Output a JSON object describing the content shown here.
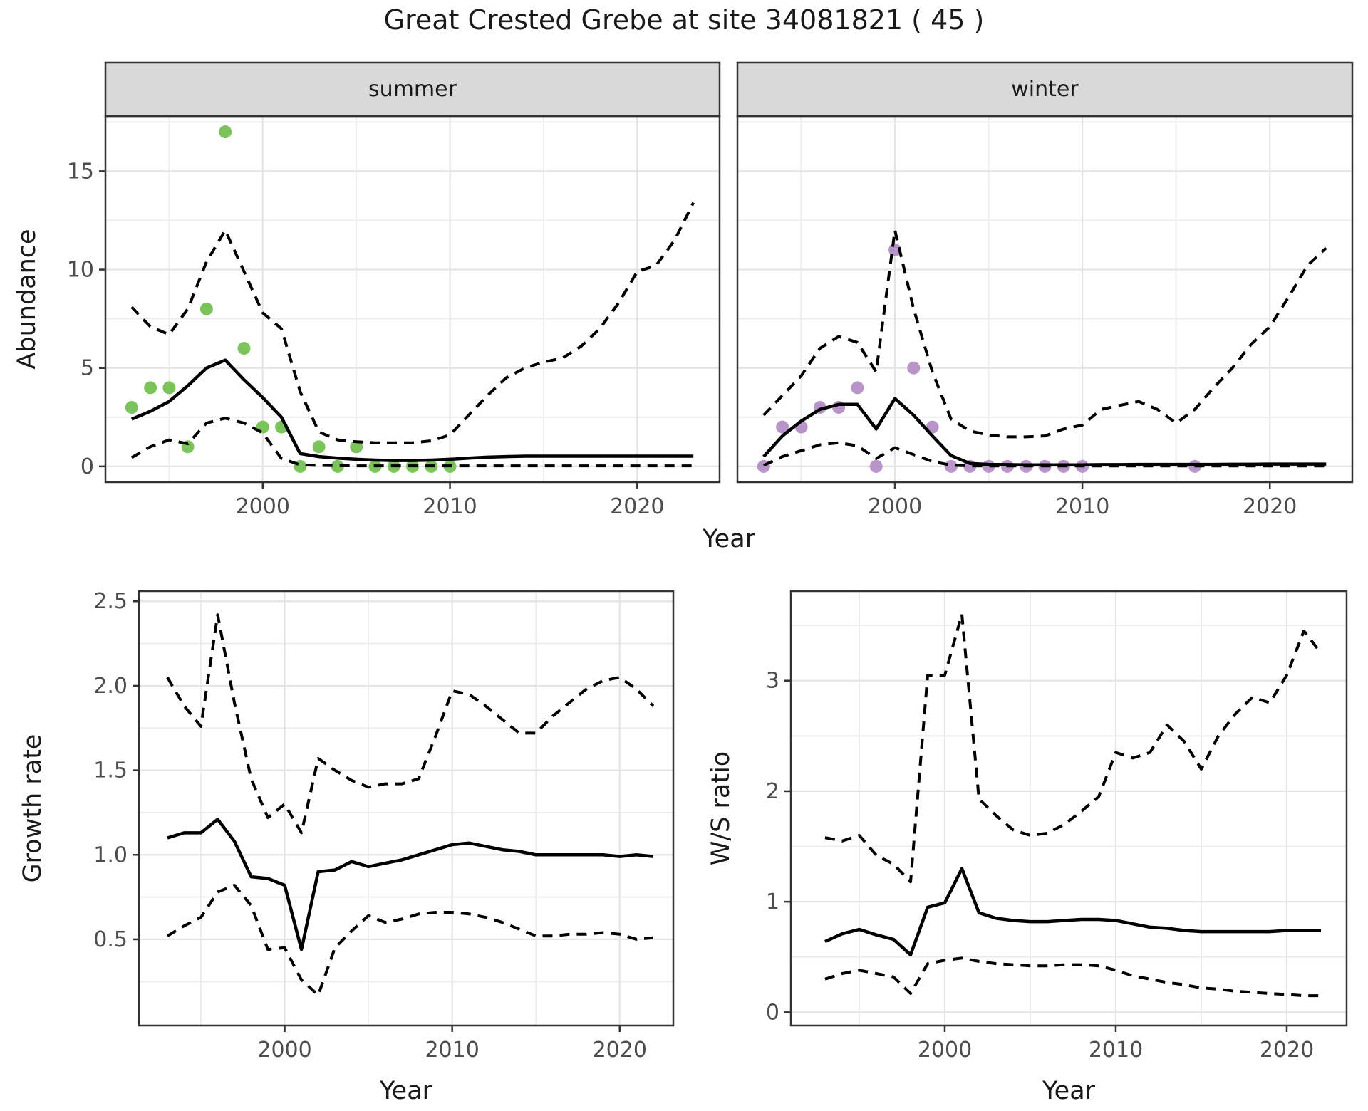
{
  "title": "Great Crested Grebe at site 34081821 ( 45 )",
  "colors": {
    "summer_points": "#7cc35c",
    "winter_points": "#b894c9",
    "line": "#000000",
    "panel_border": "#333333",
    "strip_bg": "#d9d9d9",
    "grid_major": "#e4e4e4",
    "grid_minor": "#ececec",
    "tick_text": "#4d4d4d",
    "title_text": "#1a1a1a"
  },
  "chart_data": [
    {
      "id": "abundance-summer",
      "type": "scatter+line",
      "facet": "summer",
      "xlabel": "Year",
      "ylabel": "Abundance",
      "xlim": [
        1991.6,
        2024.4
      ],
      "ylim": [
        -0.8,
        17.8
      ],
      "x_ticks": [
        2000,
        2010,
        2020
      ],
      "x_tick_labels": [
        "2000",
        "2010",
        "2020"
      ],
      "x_minor": [
        1995,
        2005,
        2015
      ],
      "y_ticks": [
        0,
        5,
        10,
        15
      ],
      "y_tick_labels": [
        "0",
        "5",
        "10",
        "15"
      ],
      "y_minor": [
        2.5,
        7.5,
        12.5,
        17.5
      ],
      "grid": "on",
      "legend": "none",
      "points": {
        "color": "#7cc35c",
        "years": [
          1993,
          1994,
          1995,
          1996,
          1997,
          1998,
          1999,
          2000,
          2001,
          2002,
          2003,
          2004,
          2005,
          2006,
          2007,
          2008,
          2009,
          2010
        ],
        "values": [
          3,
          4,
          4,
          1,
          8,
          17,
          6,
          2,
          2,
          0,
          1,
          0,
          1,
          0,
          0,
          0,
          0,
          0
        ]
      },
      "series": [
        {
          "name": "median-fit",
          "style": "solid",
          "year_start": 1993,
          "values": [
            2.4,
            2.8,
            3.3,
            4.1,
            5.0,
            5.4,
            4.4,
            3.5,
            2.5,
            0.65,
            0.5,
            0.42,
            0.36,
            0.32,
            0.3,
            0.3,
            0.32,
            0.36,
            0.42,
            0.47,
            0.5,
            0.52,
            0.52,
            0.52,
            0.52,
            0.52,
            0.52,
            0.52,
            0.52,
            0.52,
            0.52
          ]
        },
        {
          "name": "upper-ci",
          "style": "dashed",
          "year_start": 1993,
          "values": [
            8.1,
            7.1,
            6.7,
            8.0,
            10.4,
            12.0,
            9.9,
            7.8,
            7.0,
            3.8,
            1.75,
            1.35,
            1.25,
            1.2,
            1.2,
            1.2,
            1.3,
            1.6,
            2.6,
            3.6,
            4.5,
            5.0,
            5.3,
            5.5,
            6.1,
            7.0,
            8.3,
            9.9,
            10.2,
            11.5,
            13.4
          ]
        },
        {
          "name": "lower-ci",
          "style": "dashed",
          "year_start": 1993,
          "values": [
            0.45,
            1.0,
            1.35,
            1.15,
            2.2,
            2.45,
            2.2,
            1.7,
            0.4,
            0.08,
            0.05,
            0.04,
            0.03,
            0.03,
            0.03,
            0.03,
            0.03,
            0.03,
            0.03,
            0.03,
            0.03,
            0.03,
            0.03,
            0.03,
            0.03,
            0.03,
            0.03,
            0.03,
            0.03,
            0.03,
            0.03
          ]
        }
      ]
    },
    {
      "id": "abundance-winter",
      "type": "scatter+line",
      "facet": "winter",
      "xlabel": "Year",
      "ylabel": "Abundance",
      "xlim": [
        1991.6,
        2024.4
      ],
      "ylim": [
        -0.8,
        17.8
      ],
      "x_ticks": [
        2000,
        2010,
        2020
      ],
      "x_tick_labels": [
        "2000",
        "2010",
        "2020"
      ],
      "x_minor": [
        1995,
        2005,
        2015
      ],
      "y_ticks": [],
      "y_tick_labels": [],
      "y_minor": [
        2.5,
        7.5,
        12.5,
        17.5
      ],
      "grid": "on",
      "legend": "none",
      "points": {
        "color": "#b894c9",
        "years": [
          1993,
          1994,
          1995,
          1996,
          1997,
          1998,
          1999,
          2000,
          2001,
          2002,
          2003,
          2004,
          2005,
          2006,
          2007,
          2008,
          2009,
          2010,
          2016
        ],
        "values": [
          0,
          2,
          2,
          3,
          3,
          4,
          0,
          11,
          5,
          2,
          0,
          0,
          0,
          0,
          0,
          0,
          0,
          0,
          0
        ]
      },
      "series": [
        {
          "name": "median-fit",
          "style": "solid",
          "year_start": 1993,
          "values": [
            0.5,
            1.55,
            2.3,
            2.9,
            3.15,
            3.15,
            1.9,
            3.45,
            2.6,
            1.55,
            0.55,
            0.15,
            0.1,
            0.09,
            0.08,
            0.08,
            0.08,
            0.08,
            0.09,
            0.09,
            0.1,
            0.1,
            0.1,
            0.1,
            0.1,
            0.11,
            0.11,
            0.12,
            0.12,
            0.12,
            0.12
          ]
        },
        {
          "name": "upper-ci",
          "style": "dashed",
          "year_start": 1993,
          "values": [
            2.6,
            3.6,
            4.6,
            6.0,
            6.6,
            6.3,
            4.8,
            12.0,
            8.0,
            4.8,
            2.4,
            1.8,
            1.6,
            1.5,
            1.5,
            1.55,
            1.9,
            2.1,
            2.9,
            3.1,
            3.3,
            2.9,
            2.2,
            2.9,
            4.0,
            5.0,
            6.2,
            7.1,
            8.6,
            10.2,
            11.1
          ]
        },
        {
          "name": "lower-ci",
          "style": "dashed",
          "year_start": 1993,
          "values": [
            0.05,
            0.5,
            0.8,
            1.1,
            1.2,
            1.05,
            0.4,
            0.95,
            0.6,
            0.25,
            0.06,
            0.03,
            0.02,
            0.02,
            0.02,
            0.02,
            0.02,
            0.02,
            0.02,
            0.02,
            0.02,
            0.02,
            0.02,
            0.02,
            0.02,
            0.02,
            0.02,
            0.02,
            0.02,
            0.02,
            0.02
          ]
        }
      ]
    },
    {
      "id": "growth-rate",
      "type": "line",
      "facet": null,
      "xlabel": "Year",
      "ylabel": "Growth rate",
      "xlim": [
        1991.3,
        2023.2
      ],
      "ylim": [
        -0.01,
        2.56
      ],
      "x_ticks": [
        2000,
        2010,
        2020
      ],
      "x_tick_labels": [
        "2000",
        "2010",
        "2020"
      ],
      "x_minor": [
        1995,
        2005,
        2015
      ],
      "y_ticks": [
        0.5,
        1.0,
        1.5,
        2.0,
        2.5
      ],
      "y_tick_labels": [
        "0.5",
        "1.0",
        "1.5",
        "2.0",
        "2.5"
      ],
      "y_minor": [
        0.25,
        0.75,
        1.25,
        1.75,
        2.25
      ],
      "grid": "on",
      "legend": "none",
      "points": null,
      "series": [
        {
          "name": "median-fit",
          "style": "solid",
          "year_start": 1993,
          "values": [
            1.1,
            1.13,
            1.13,
            1.21,
            1.08,
            0.87,
            0.86,
            0.82,
            0.44,
            0.9,
            0.91,
            0.96,
            0.93,
            0.95,
            0.97,
            1.0,
            1.03,
            1.06,
            1.07,
            1.05,
            1.03,
            1.02,
            1.0,
            1.0,
            1.0,
            1.0,
            1.0,
            0.99,
            1.0,
            0.99
          ]
        },
        {
          "name": "upper-ci",
          "style": "dashed",
          "year_start": 1993,
          "values": [
            2.05,
            1.88,
            1.76,
            2.42,
            1.9,
            1.45,
            1.22,
            1.3,
            1.13,
            1.57,
            1.5,
            1.44,
            1.4,
            1.42,
            1.42,
            1.45,
            1.7,
            1.97,
            1.95,
            1.88,
            1.8,
            1.72,
            1.72,
            1.82,
            1.9,
            1.98,
            2.03,
            2.05,
            1.98,
            1.88
          ]
        },
        {
          "name": "lower-ci",
          "style": "dashed",
          "year_start": 1993,
          "values": [
            0.52,
            0.58,
            0.63,
            0.78,
            0.82,
            0.7,
            0.44,
            0.45,
            0.26,
            0.17,
            0.45,
            0.55,
            0.64,
            0.6,
            0.62,
            0.65,
            0.66,
            0.66,
            0.65,
            0.63,
            0.6,
            0.56,
            0.52,
            0.52,
            0.53,
            0.53,
            0.54,
            0.53,
            0.5,
            0.51
          ]
        }
      ]
    },
    {
      "id": "ws-ratio",
      "type": "line",
      "facet": null,
      "xlabel": "Year",
      "ylabel": "W/S ratio",
      "xlim": [
        1991.0,
        2023.5
      ],
      "ylim": [
        -0.12,
        3.81
      ],
      "x_ticks": [
        2000,
        2010,
        2020
      ],
      "x_tick_labels": [
        "2000",
        "2010",
        "2020"
      ],
      "x_minor": [
        1995,
        2005,
        2015
      ],
      "y_ticks": [
        0,
        1,
        2,
        3
      ],
      "y_tick_labels": [
        "0",
        "1",
        "2",
        "3"
      ],
      "y_minor": [
        0.5,
        1.5,
        2.5,
        3.5
      ],
      "grid": "on",
      "legend": "none",
      "points": null,
      "series": [
        {
          "name": "median-fit",
          "style": "solid",
          "year_start": 1993,
          "values": [
            0.64,
            0.71,
            0.75,
            0.7,
            0.66,
            0.52,
            0.95,
            0.99,
            1.3,
            0.9,
            0.85,
            0.83,
            0.82,
            0.82,
            0.83,
            0.84,
            0.84,
            0.83,
            0.8,
            0.77,
            0.76,
            0.74,
            0.73,
            0.73,
            0.73,
            0.73,
            0.73,
            0.74,
            0.74,
            0.74
          ]
        },
        {
          "name": "upper-ci",
          "style": "dashed",
          "year_start": 1993,
          "values": [
            1.58,
            1.55,
            1.6,
            1.42,
            1.34,
            1.18,
            3.05,
            3.05,
            3.6,
            1.93,
            1.78,
            1.65,
            1.6,
            1.62,
            1.7,
            1.82,
            1.95,
            2.35,
            2.3,
            2.35,
            2.6,
            2.45,
            2.2,
            2.5,
            2.7,
            2.85,
            2.8,
            3.05,
            3.45,
            3.25
          ]
        },
        {
          "name": "lower-ci",
          "style": "dashed",
          "year_start": 1993,
          "values": [
            0.3,
            0.35,
            0.38,
            0.35,
            0.32,
            0.17,
            0.44,
            0.47,
            0.49,
            0.46,
            0.44,
            0.43,
            0.42,
            0.42,
            0.43,
            0.43,
            0.42,
            0.38,
            0.33,
            0.3,
            0.27,
            0.25,
            0.22,
            0.21,
            0.19,
            0.18,
            0.17,
            0.16,
            0.15,
            0.15
          ]
        }
      ]
    }
  ]
}
